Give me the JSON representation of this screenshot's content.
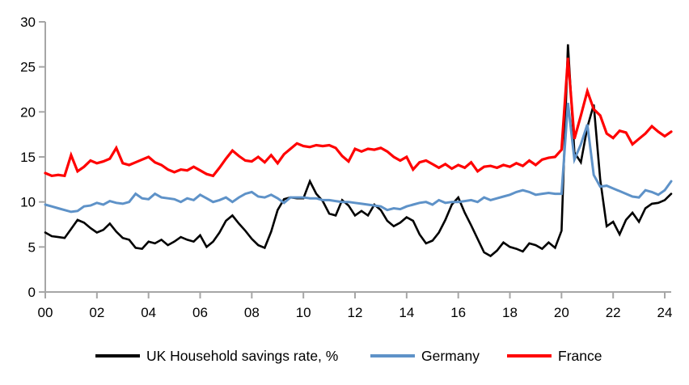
{
  "chart_data": {
    "type": "line",
    "title": "",
    "xlabel": "",
    "ylabel": "",
    "grid": false,
    "legend_position": "bottom",
    "axis_color": "#A6A6A6",
    "ylim": [
      0,
      30
    ],
    "y_ticks": [
      0,
      5,
      10,
      15,
      20,
      25,
      30
    ],
    "x_tick_labels": [
      "00",
      "02",
      "04",
      "06",
      "08",
      "10",
      "12",
      "14",
      "16",
      "18",
      "20",
      "22",
      "24"
    ],
    "x_range": "2000Q1 to 2024Q2, quarterly",
    "series": [
      {
        "name": "UK Household savings rate, %",
        "key": "uk",
        "color": "#000000",
        "values": [
          6.6,
          6.2,
          6.1,
          6.0,
          7.0,
          8.0,
          7.7,
          7.1,
          6.6,
          6.9,
          7.6,
          6.7,
          6.0,
          5.8,
          4.9,
          4.8,
          5.6,
          5.4,
          5.8,
          5.2,
          5.6,
          6.1,
          5.8,
          5.6,
          6.3,
          5.0,
          5.6,
          6.6,
          7.9,
          8.5,
          7.6,
          6.8,
          5.9,
          5.2,
          4.9,
          6.7,
          9.1,
          10.3,
          10.5,
          10.4,
          10.4,
          12.3,
          10.9,
          10.1,
          8.7,
          8.5,
          10.2,
          9.6,
          8.5,
          9.0,
          8.5,
          9.7,
          9.1,
          7.9,
          7.3,
          7.7,
          8.3,
          7.9,
          6.4,
          5.4,
          5.7,
          6.6,
          8.0,
          9.7,
          10.5,
          8.8,
          7.4,
          5.9,
          4.4,
          4.0,
          4.6,
          5.5,
          5.0,
          4.8,
          4.5,
          5.4,
          5.2,
          4.8,
          5.5,
          4.9,
          6.8,
          27.5,
          15.5,
          14.4,
          18.3,
          20.8,
          12.5,
          7.3,
          7.8,
          6.4,
          8.0,
          8.8,
          7.8,
          9.3,
          9.8,
          9.9,
          10.2,
          10.9
        ]
      },
      {
        "name": "Germany",
        "key": "germany",
        "color": "#5E92C8",
        "values": [
          9.7,
          9.5,
          9.3,
          9.1,
          8.9,
          9.0,
          9.5,
          9.6,
          9.9,
          9.7,
          10.1,
          9.9,
          9.8,
          10.0,
          10.9,
          10.4,
          10.3,
          10.9,
          10.5,
          10.4,
          10.3,
          10.0,
          10.4,
          10.2,
          10.8,
          10.4,
          10.0,
          10.2,
          10.5,
          10.0,
          10.5,
          10.9,
          11.1,
          10.6,
          10.5,
          10.8,
          10.4,
          9.9,
          10.5,
          10.5,
          10.5,
          10.4,
          10.4,
          10.2,
          10.2,
          10.1,
          10.0,
          10.0,
          9.9,
          9.8,
          9.7,
          9.6,
          9.5,
          9.1,
          9.3,
          9.2,
          9.5,
          9.7,
          9.9,
          10.0,
          9.7,
          10.2,
          9.9,
          10.0,
          10.0,
          10.1,
          10.2,
          10.0,
          10.5,
          10.2,
          10.4,
          10.6,
          10.8,
          11.1,
          11.3,
          11.1,
          10.8,
          10.9,
          11.0,
          10.9,
          10.9,
          21.0,
          14.7,
          16.4,
          18.6,
          13.0,
          11.7,
          11.8,
          11.5,
          11.2,
          10.9,
          10.6,
          10.5,
          11.3,
          11.1,
          10.8,
          11.3,
          12.3
        ]
      },
      {
        "name": "France",
        "key": "france",
        "color": "#FF0000",
        "values": [
          13.2,
          12.9,
          13.0,
          12.9,
          15.2,
          13.4,
          13.9,
          14.6,
          14.3,
          14.5,
          14.8,
          16.0,
          14.3,
          14.1,
          14.4,
          14.7,
          15.0,
          14.4,
          14.1,
          13.6,
          13.3,
          13.6,
          13.5,
          13.9,
          13.5,
          13.1,
          12.9,
          13.8,
          14.8,
          15.7,
          15.1,
          14.6,
          14.5,
          15.0,
          14.4,
          15.2,
          14.3,
          15.3,
          15.9,
          16.5,
          16.2,
          16.1,
          16.3,
          16.2,
          16.3,
          16.0,
          15.1,
          14.5,
          15.9,
          15.6,
          15.9,
          15.8,
          16.0,
          15.6,
          15.0,
          14.6,
          15.0,
          13.6,
          14.4,
          14.6,
          14.2,
          13.8,
          14.2,
          13.7,
          14.1,
          13.8,
          14.4,
          13.4,
          13.9,
          14.0,
          13.8,
          14.1,
          13.9,
          14.3,
          14.0,
          14.6,
          14.1,
          14.7,
          14.9,
          15.0,
          15.8,
          26.0,
          17.0,
          19.6,
          22.3,
          20.3,
          19.6,
          17.6,
          17.1,
          17.9,
          17.7,
          16.4,
          17.0,
          17.6,
          18.4,
          17.8,
          17.3,
          17.8
        ]
      }
    ]
  }
}
